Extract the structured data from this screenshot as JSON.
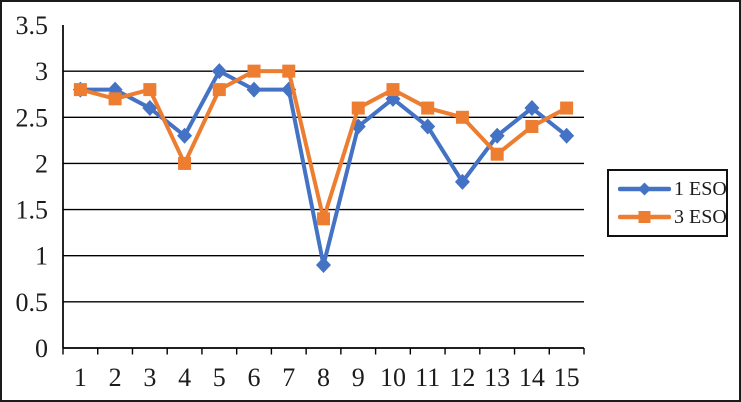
{
  "chart_data": {
    "type": "line",
    "title": "",
    "xlabel": "",
    "ylabel": "",
    "x": [
      "1",
      "2",
      "3",
      "4",
      "5",
      "6",
      "7",
      "8",
      "9",
      "10",
      "11",
      "12",
      "13",
      "14",
      "15"
    ],
    "series": [
      {
        "name": "1 ESO",
        "color": "#4472C4",
        "marker": "diamond",
        "values": [
          2.8,
          2.8,
          2.6,
          2.3,
          3.0,
          2.8,
          2.8,
          0.9,
          2.4,
          2.7,
          2.4,
          1.8,
          2.3,
          2.6,
          2.3
        ]
      },
      {
        "name": "3 ESO",
        "color": "#ED7D31",
        "marker": "square",
        "values": [
          2.8,
          2.7,
          2.8,
          2.0,
          2.8,
          3.0,
          3.0,
          1.4,
          2.6,
          2.8,
          2.6,
          2.5,
          2.1,
          2.4,
          2.6
        ]
      }
    ],
    "ylim": [
      0,
      3.5
    ],
    "yticks": [
      0,
      0.5,
      1,
      1.5,
      2,
      2.5,
      3,
      3.5
    ],
    "ytick_labels": [
      "0",
      "0.5",
      "1",
      "1.5",
      "2",
      "2.5",
      "3",
      "3.5"
    ],
    "gridline_values": [
      0.5,
      1,
      1.5,
      2,
      2.5,
      3
    ],
    "grid": true,
    "legend_position": "right",
    "axis_color": "#000000",
    "background_color": "#ffffff"
  }
}
